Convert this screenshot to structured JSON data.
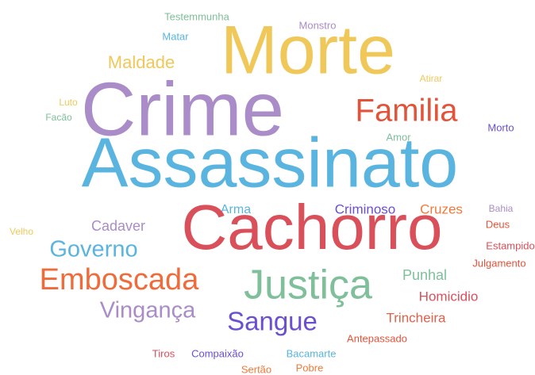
{
  "words": [
    {
      "text": "Testemmunha",
      "color": "#7fbf9a"
    },
    {
      "text": "Monstro",
      "color": "#a98cc8"
    },
    {
      "text": "Matar",
      "color": "#5ab4e0"
    },
    {
      "text": "Morte",
      "color": "#f0c85a"
    },
    {
      "text": "Maldade",
      "color": "#f0c85a"
    },
    {
      "text": "Atirar",
      "color": "#f0c85a"
    },
    {
      "text": "Luto",
      "color": "#f0c85a"
    },
    {
      "text": "Crime",
      "color": "#a98cc8"
    },
    {
      "text": "Familia",
      "color": "#e2533a"
    },
    {
      "text": "Facão",
      "color": "#7fbf9a"
    },
    {
      "text": "Morto",
      "color": "#6a4fd0"
    },
    {
      "text": "Amor",
      "color": "#7fbf9a"
    },
    {
      "text": "Assassinato",
      "color": "#5ab4e0"
    },
    {
      "text": "Arma",
      "color": "#5ab4e0"
    },
    {
      "text": "Criminoso",
      "color": "#6a4fd0"
    },
    {
      "text": "Cruzes",
      "color": "#f07a3a"
    },
    {
      "text": "Bahia",
      "color": "#a98cc8"
    },
    {
      "text": "Cadaver",
      "color": "#a98cc8"
    },
    {
      "text": "Cachorro",
      "color": "#d94f5a"
    },
    {
      "text": "Deus",
      "color": "#e2533a"
    },
    {
      "text": "Velho",
      "color": "#f0c85a"
    },
    {
      "text": "Estampido",
      "color": "#d94f5a"
    },
    {
      "text": "Governo",
      "color": "#5ab4e0"
    },
    {
      "text": "Julgamento",
      "color": "#e2533a"
    },
    {
      "text": "Emboscada",
      "color": "#f06a3a"
    },
    {
      "text": "Justiça",
      "color": "#7fbf9a"
    },
    {
      "text": "Punhal",
      "color": "#7fbf9a"
    },
    {
      "text": "Homicidio",
      "color": "#d94f5a"
    },
    {
      "text": "Vingança",
      "color": "#a98cc8"
    },
    {
      "text": "Sangue",
      "color": "#6a4fd0"
    },
    {
      "text": "Trincheira",
      "color": "#e0604a"
    },
    {
      "text": "Antepassado",
      "color": "#e2533a"
    },
    {
      "text": "Tiros",
      "color": "#d94f5a"
    },
    {
      "text": "Compaixão",
      "color": "#6a4fd0"
    },
    {
      "text": "Bacamarte",
      "color": "#5ab4e0"
    },
    {
      "text": "Sertão",
      "color": "#f07a3a"
    },
    {
      "text": "Pobre",
      "color": "#f07a3a"
    }
  ]
}
